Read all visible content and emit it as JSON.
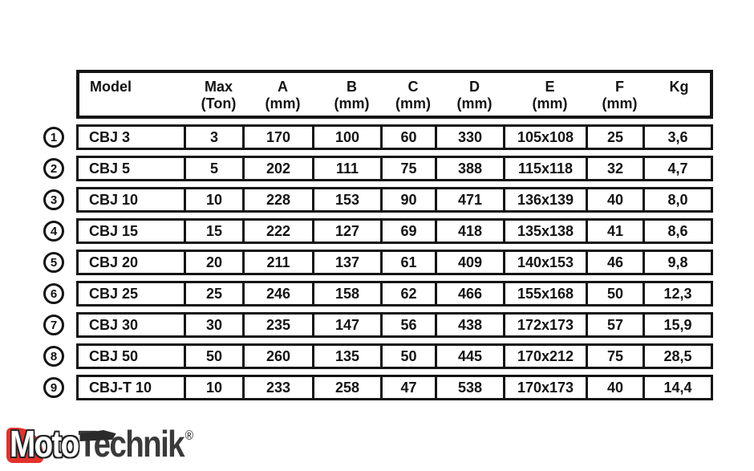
{
  "colors": {
    "border": "#141414",
    "text": "#131313",
    "logo_red": "#e5312b",
    "logo_dark": "#3a3a3a"
  },
  "table": {
    "column_keys": [
      "model",
      "max_ton",
      "a_mm",
      "b_mm",
      "c_mm",
      "d_mm",
      "e_mm",
      "f_mm",
      "kg"
    ],
    "headers": [
      {
        "key": "model",
        "line1": "Model",
        "line2": ""
      },
      {
        "key": "max_ton",
        "line1": "Max",
        "line2": "(Ton)"
      },
      {
        "key": "a_mm",
        "line1": "A",
        "line2": "(mm)"
      },
      {
        "key": "b_mm",
        "line1": "B",
        "line2": "(mm)"
      },
      {
        "key": "c_mm",
        "line1": "C",
        "line2": "(mm)"
      },
      {
        "key": "d_mm",
        "line1": "D",
        "line2": "(mm)"
      },
      {
        "key": "e_mm",
        "line1": "E",
        "line2": "(mm)"
      },
      {
        "key": "f_mm",
        "line1": "F",
        "line2": "(mm)"
      },
      {
        "key": "kg",
        "line1": "Kg",
        "line2": ""
      }
    ],
    "rows": [
      {
        "number": "1",
        "model": "CBJ 3",
        "max_ton": "3",
        "a_mm": "170",
        "b_mm": "100",
        "c_mm": "60",
        "d_mm": "330",
        "e_mm": "105x108",
        "f_mm": "25",
        "kg": "3,6"
      },
      {
        "number": "2",
        "model": "CBJ 5",
        "max_ton": "5",
        "a_mm": "202",
        "b_mm": "111",
        "c_mm": "75",
        "d_mm": "388",
        "e_mm": "115x118",
        "f_mm": "32",
        "kg": "4,7"
      },
      {
        "number": "3",
        "model": "CBJ 10",
        "max_ton": "10",
        "a_mm": "228",
        "b_mm": "153",
        "c_mm": "90",
        "d_mm": "471",
        "e_mm": "136x139",
        "f_mm": "40",
        "kg": "8,0"
      },
      {
        "number": "4",
        "model": "CBJ 15",
        "max_ton": "15",
        "a_mm": "222",
        "b_mm": "127",
        "c_mm": "69",
        "d_mm": "418",
        "e_mm": "135x138",
        "f_mm": "41",
        "kg": "8,6"
      },
      {
        "number": "5",
        "model": "CBJ 20",
        "max_ton": "20",
        "a_mm": "211",
        "b_mm": "137",
        "c_mm": "61",
        "d_mm": "409",
        "e_mm": "140x153",
        "f_mm": "46",
        "kg": "9,8"
      },
      {
        "number": "6",
        "model": "CBJ 25",
        "max_ton": "25",
        "a_mm": "246",
        "b_mm": "158",
        "c_mm": "62",
        "d_mm": "466",
        "e_mm": "155x168",
        "f_mm": "50",
        "kg": "12,3"
      },
      {
        "number": "7",
        "model": "CBJ 30",
        "max_ton": "30",
        "a_mm": "235",
        "b_mm": "147",
        "c_mm": "56",
        "d_mm": "438",
        "e_mm": "172x173",
        "f_mm": "57",
        "kg": "15,9"
      },
      {
        "number": "8",
        "model": "CBJ 50",
        "max_ton": "50",
        "a_mm": "260",
        "b_mm": "135",
        "c_mm": "50",
        "d_mm": "445",
        "e_mm": "170x212",
        "f_mm": "75",
        "kg": "28,5"
      },
      {
        "number": "9",
        "model": "CBJ-T 10",
        "max_ton": "10",
        "a_mm": "233",
        "b_mm": "258",
        "c_mm": "47",
        "d_mm": "538",
        "e_mm": "170x173",
        "f_mm": "40",
        "kg": "14,4"
      }
    ]
  },
  "logo": {
    "m": "M",
    "oto": "oto",
    "t": "T",
    "echnik": "echnik",
    "reg": "®"
  }
}
